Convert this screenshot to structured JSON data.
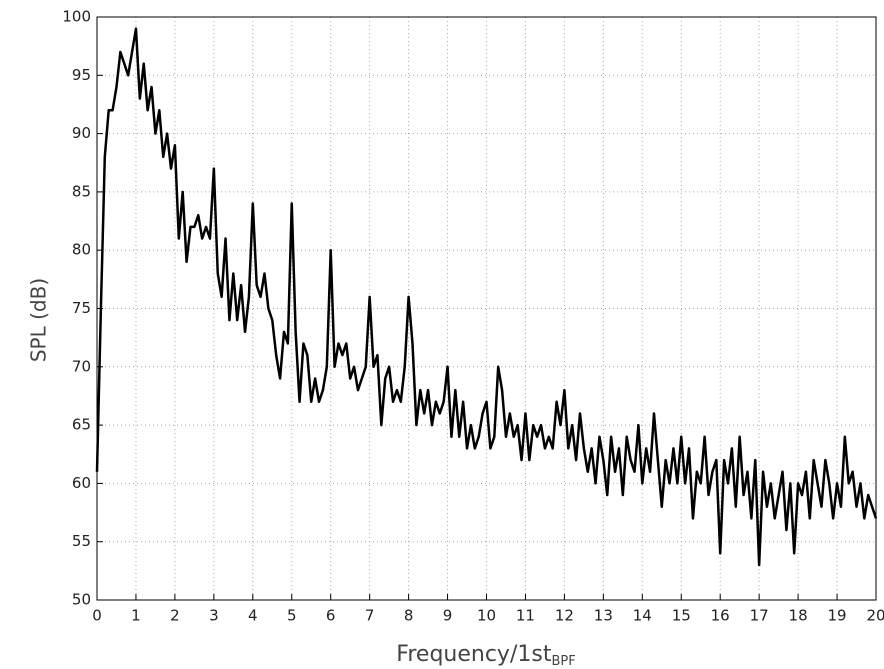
{
  "chart_data": {
    "type": "line",
    "xlabel": "Frequency/1st",
    "xlabel_sub": "BPF",
    "ylabel": "SPL (dB)",
    "color": "#000000",
    "grid": true,
    "xlim": [
      0,
      20
    ],
    "xticks": [
      0,
      1,
      2,
      3,
      4,
      5,
      6,
      7,
      8,
      9,
      10,
      11,
      12,
      13,
      14,
      15,
      16,
      17,
      18,
      19,
      20
    ],
    "ylim": [
      50,
      100
    ],
    "yticks": [
      50,
      55,
      60,
      65,
      70,
      75,
      80,
      85,
      90,
      95,
      100
    ],
    "x": [
      0,
      0.1,
      0.2,
      0.3,
      0.4,
      0.5,
      0.6,
      0.7,
      0.8,
      0.9,
      1,
      1.1,
      1.2,
      1.3,
      1.4,
      1.5,
      1.6,
      1.7,
      1.8,
      1.9,
      2,
      2.1,
      2.2,
      2.3,
      2.4,
      2.5,
      2.6,
      2.7,
      2.8,
      2.9,
      3,
      3.1,
      3.2,
      3.3,
      3.4,
      3.5,
      3.6,
      3.7,
      3.8,
      3.9,
      4,
      4.1,
      4.2,
      4.3,
      4.4,
      4.5,
      4.6,
      4.7,
      4.8,
      4.9,
      5,
      5.1,
      5.2,
      5.3,
      5.4,
      5.5,
      5.6,
      5.7,
      5.8,
      5.9,
      6,
      6.1,
      6.2,
      6.3,
      6.4,
      6.5,
      6.6,
      6.7,
      6.8,
      6.9,
      7,
      7.1,
      7.2,
      7.3,
      7.4,
      7.5,
      7.6,
      7.7,
      7.8,
      7.9,
      8,
      8.1,
      8.2,
      8.3,
      8.4,
      8.5,
      8.6,
      8.7,
      8.8,
      8.9,
      9,
      9.1,
      9.2,
      9.3,
      9.4,
      9.5,
      9.6,
      9.7,
      9.8,
      9.9,
      10,
      10.1,
      10.2,
      10.3,
      10.4,
      10.5,
      10.6,
      10.7,
      10.8,
      10.9,
      11,
      11.1,
      11.2,
      11.3,
      11.4,
      11.5,
      11.6,
      11.7,
      11.8,
      11.9,
      12,
      12.1,
      12.2,
      12.3,
      12.4,
      12.5,
      12.6,
      12.7,
      12.8,
      12.9,
      13,
      13.1,
      13.2,
      13.3,
      13.4,
      13.5,
      13.6,
      13.7,
      13.8,
      13.9,
      14,
      14.1,
      14.2,
      14.3,
      14.4,
      14.5,
      14.6,
      14.7,
      14.8,
      14.9,
      15,
      15.1,
      15.2,
      15.3,
      15.4,
      15.5,
      15.6,
      15.7,
      15.8,
      15.9,
      16,
      16.1,
      16.2,
      16.3,
      16.4,
      16.5,
      16.6,
      16.7,
      16.8,
      16.9,
      17,
      17.1,
      17.2,
      17.3,
      17.4,
      17.5,
      17.6,
      17.7,
      17.8,
      17.9,
      18,
      18.1,
      18.2,
      18.3,
      18.4,
      18.5,
      18.6,
      18.7,
      18.8,
      18.9,
      19,
      19.1,
      19.2,
      19.3,
      19.4,
      19.5,
      19.6,
      19.7,
      19.8,
      19.9,
      20
    ],
    "values": [
      61,
      75,
      88,
      92,
      92,
      94,
      97,
      96,
      95,
      97,
      99,
      93,
      96,
      92,
      94,
      90,
      92,
      88,
      90,
      87,
      89,
      81,
      85,
      79,
      82,
      82,
      83,
      81,
      82,
      81,
      87,
      78,
      76,
      81,
      74,
      78,
      74,
      77,
      73,
      76,
      84,
      77,
      76,
      78,
      75,
      74,
      71,
      69,
      73,
      72,
      84,
      73,
      67,
      72,
      71,
      67,
      69,
      67,
      68,
      70,
      80,
      70,
      72,
      71,
      72,
      69,
      70,
      68,
      69,
      70,
      76,
      70,
      71,
      65,
      69,
      70,
      67,
      68,
      67,
      70,
      76,
      72,
      65,
      68,
      66,
      68,
      65,
      67,
      66,
      67,
      70,
      64,
      68,
      64,
      67,
      63,
      65,
      63,
      64,
      66,
      67,
      63,
      64,
      70,
      68,
      64,
      66,
      64,
      65,
      62,
      66,
      62,
      65,
      64,
      65,
      63,
      64,
      63,
      67,
      65,
      68,
      63,
      65,
      62,
      66,
      63,
      61,
      63,
      60,
      64,
      62,
      59,
      64,
      61,
      63,
      59,
      64,
      62,
      61,
      65,
      60,
      63,
      61,
      66,
      62,
      58,
      62,
      60,
      63,
      60,
      64,
      60,
      63,
      57,
      61,
      60,
      64,
      59,
      61,
      62,
      54,
      62,
      60,
      63,
      58,
      64,
      59,
      61,
      57,
      62,
      53,
      61,
      58,
      60,
      57,
      59,
      61,
      56,
      60,
      54,
      60,
      59,
      61,
      57,
      62,
      60,
      58,
      62,
      60,
      57,
      60,
      58,
      64,
      60,
      61,
      58,
      60,
      57,
      59,
      58,
      57
    ]
  }
}
